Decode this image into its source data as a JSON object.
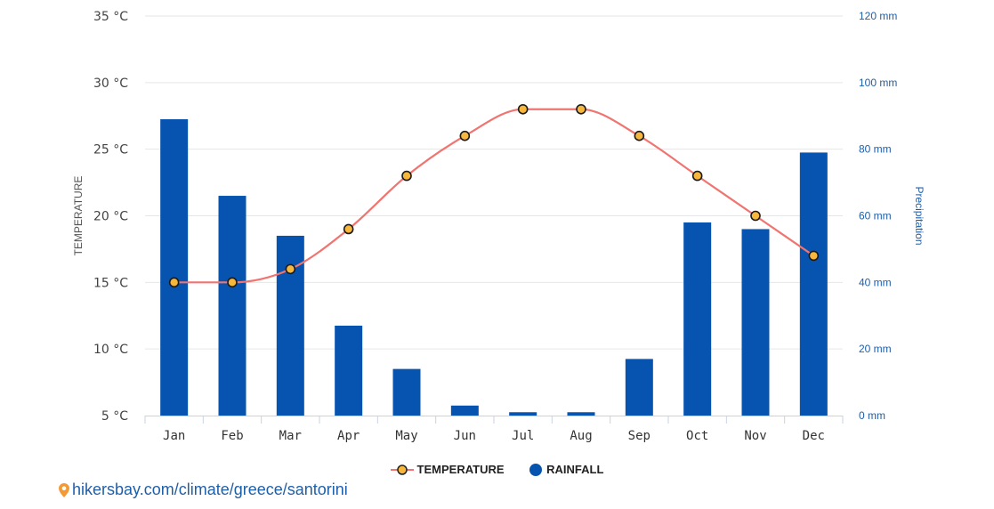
{
  "chart_data": {
    "type": "bar+line",
    "categories": [
      "Jan",
      "Feb",
      "Mar",
      "Apr",
      "May",
      "Jun",
      "Jul",
      "Aug",
      "Sep",
      "Oct",
      "Nov",
      "Dec"
    ],
    "series": [
      {
        "name": "TEMPERATURE",
        "type": "line",
        "axis": "left",
        "unit": "°C",
        "values": [
          15,
          15,
          16,
          19,
          23,
          26,
          28,
          28,
          26,
          23,
          20,
          17
        ],
        "color": "#f07470"
      },
      {
        "name": "RAINFALL",
        "type": "bar",
        "axis": "right",
        "unit": "mm",
        "values": [
          89,
          66,
          54,
          27,
          14,
          3,
          1,
          1,
          17,
          58,
          56,
          79
        ],
        "color": "#0754b0"
      }
    ],
    "ylabel": "TEMPERATURE",
    "y2label": "Precipitation",
    "ylim": [
      5,
      35
    ],
    "y2lim": [
      0,
      120
    ],
    "yticks": [
      "35 °C",
      "30 °C",
      "25 °C",
      "20 °C",
      "15 °C",
      "10 °C",
      "5 °C"
    ],
    "y2ticks": [
      "120 mm",
      "100 mm",
      "80 mm",
      "60 mm",
      "40 mm",
      "20 mm",
      "0 mm"
    ],
    "grid": true,
    "legend_placement": "bottom"
  },
  "colors": {
    "temperature_line": "#f07470",
    "marker_fill": "#f6b73c",
    "rainfall_bar": "#0754b0",
    "right_axis": "#1f5fa8"
  },
  "legend": {
    "temperature": "TEMPERATURE",
    "rainfall": "RAINFALL"
  },
  "source": {
    "text": "hikersbay.com/climate/greece/santorini",
    "icon": "map-pin-icon"
  }
}
